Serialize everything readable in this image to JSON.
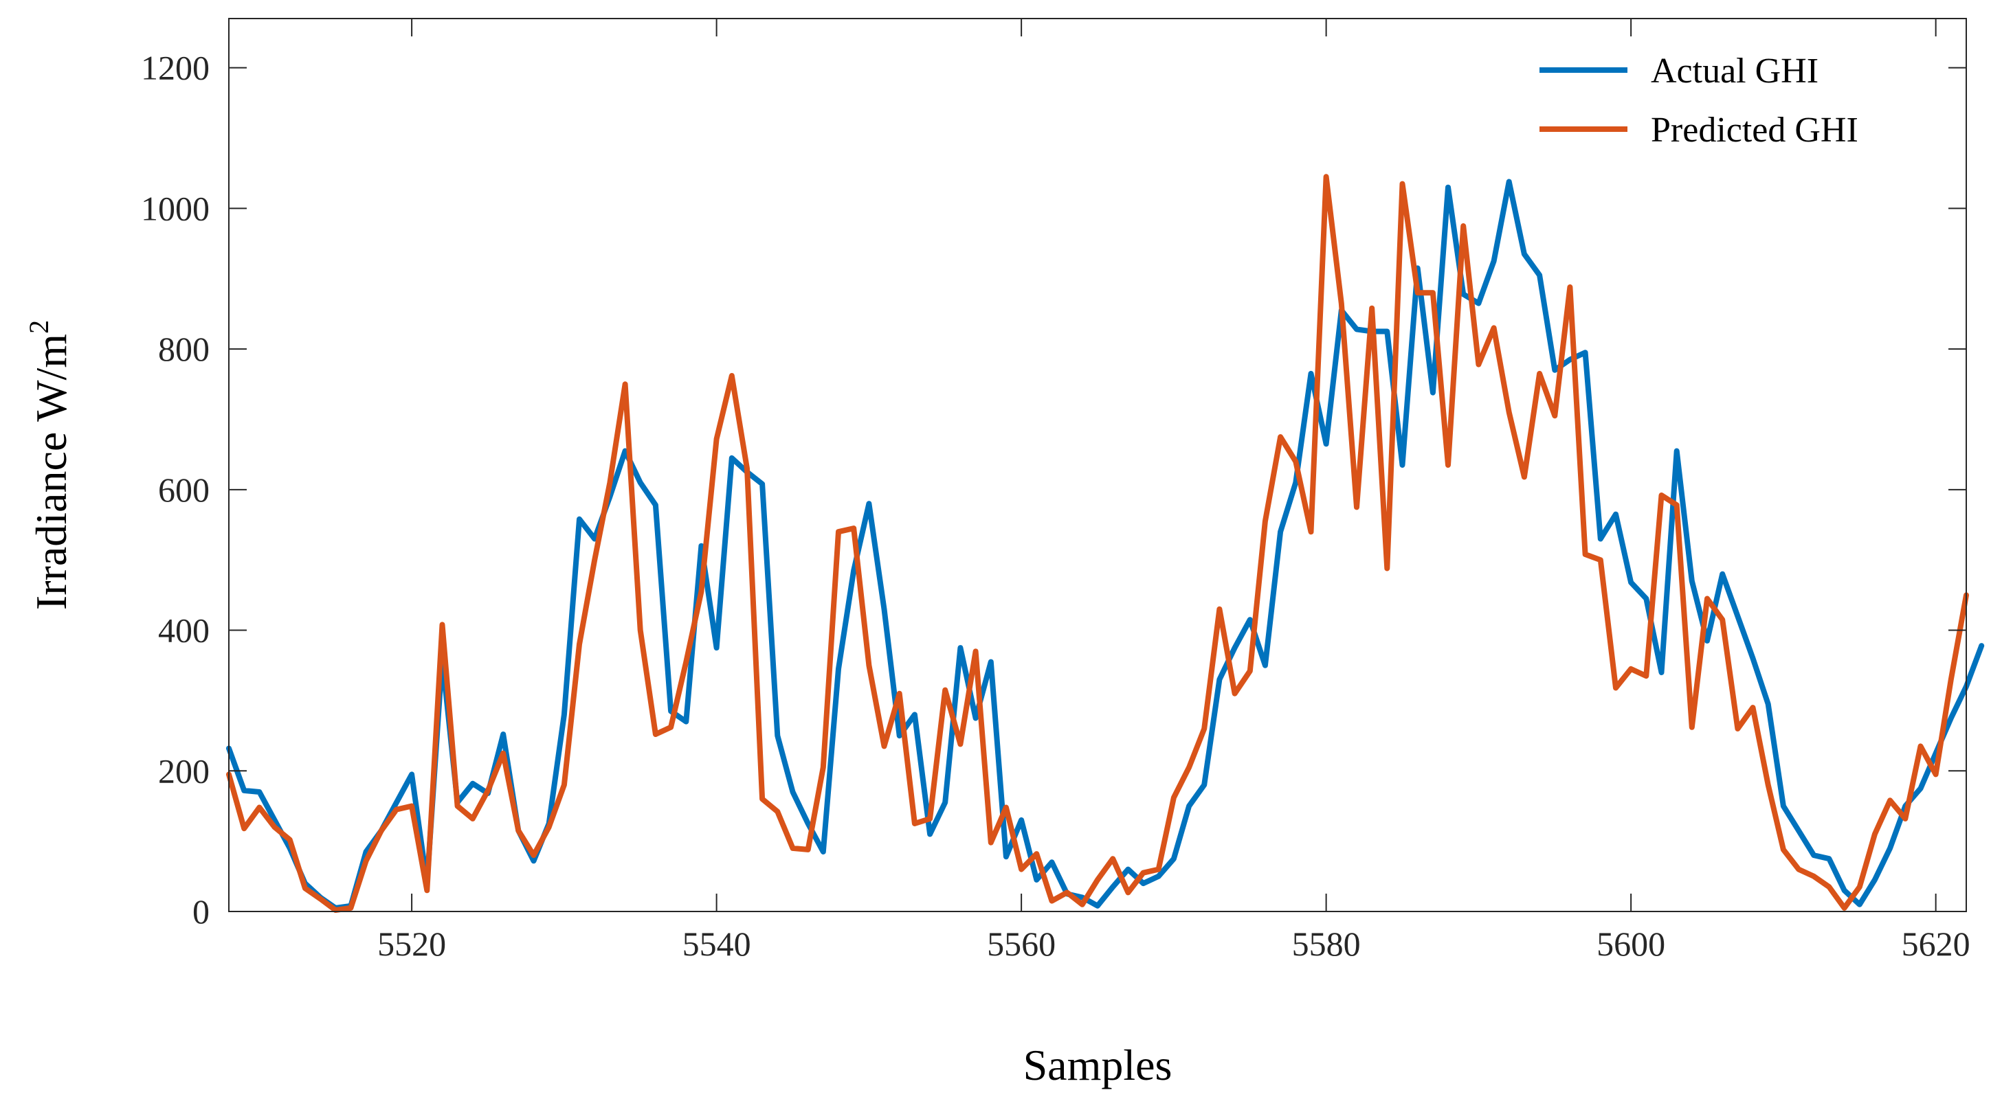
{
  "chart_data": {
    "type": "line",
    "title": "",
    "xlabel": "Samples",
    "ylabel": {
      "text": "Irradiance W/m",
      "superscript": "2"
    },
    "xlim": [
      5508,
      5622
    ],
    "ylim": [
      0,
      1270
    ],
    "xticks": [
      5520,
      5540,
      5560,
      5580,
      5600,
      5620
    ],
    "yticks": [
      0,
      200,
      400,
      600,
      800,
      1000,
      1200
    ],
    "grid": false,
    "legend_position": "top-right",
    "x_start": 5508,
    "series": [
      {
        "name": "Actual GHI",
        "color": "#0072BD",
        "values": [
          232,
          172,
          170,
          130,
          90,
          40,
          20,
          5,
          8,
          85,
          115,
          155,
          195,
          40,
          360,
          155,
          182,
          168,
          252,
          115,
          72,
          125,
          280,
          558,
          530,
          590,
          655,
          610,
          578,
          285,
          270,
          520,
          375,
          645,
          625,
          608,
          250,
          170,
          125,
          85,
          345,
          485,
          580,
          430,
          250,
          280,
          110,
          155,
          375,
          275,
          355,
          78,
          130,
          45,
          70,
          25,
          20,
          8,
          35,
          60,
          40,
          50,
          75,
          150,
          180,
          330,
          375,
          415,
          350,
          540,
          610,
          765,
          665,
          855,
          828,
          825,
          825,
          635,
          915,
          738,
          1030,
          878,
          865,
          925,
          1038,
          935,
          905,
          770,
          785,
          795,
          530,
          565,
          468,
          445,
          340,
          655,
          470,
          385,
          480,
          420,
          360,
          295,
          150,
          115,
          80,
          75,
          30,
          10,
          45,
          90,
          150,
          175,
          225,
          275,
          320,
          378
        ]
      },
      {
        "name": "Predicted GHI",
        "color": "#D95319",
        "values": [
          195,
          118,
          148,
          120,
          102,
          33,
          18,
          2,
          5,
          72,
          115,
          145,
          150,
          30,
          408,
          150,
          132,
          172,
          225,
          115,
          80,
          120,
          180,
          380,
          500,
          610,
          750,
          400,
          252,
          262,
          355,
          455,
          672,
          762,
          630,
          160,
          142,
          90,
          88,
          205,
          540,
          545,
          350,
          235,
          310,
          125,
          132,
          315,
          238,
          370,
          98,
          148,
          60,
          82,
          15,
          27,
          10,
          45,
          75,
          27,
          55,
          60,
          162,
          205,
          260,
          430,
          310,
          342,
          555,
          675,
          640,
          540,
          1045,
          865,
          575,
          858,
          488,
          1035,
          880,
          880,
          635,
          975,
          778,
          830,
          710,
          618,
          765,
          705,
          888,
          508,
          500,
          318,
          345,
          335,
          592,
          578,
          262,
          445,
          415,
          260,
          290,
          180,
          88,
          60,
          50,
          35,
          5,
          35,
          110,
          158,
          132,
          235,
          195,
          330,
          450
        ]
      }
    ]
  }
}
